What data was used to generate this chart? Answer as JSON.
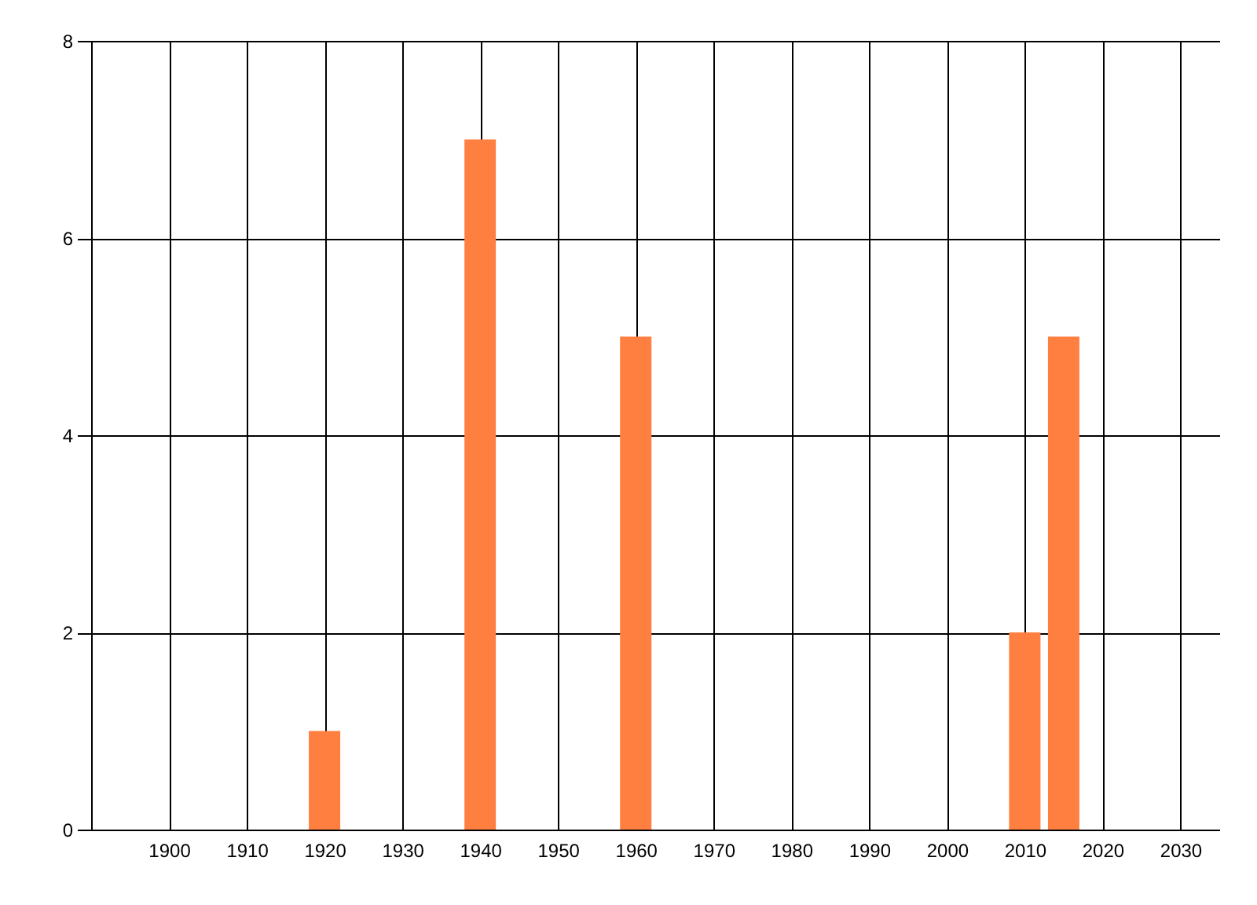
{
  "chart_data": {
    "type": "bar",
    "x": [
      1920,
      1940,
      1960,
      2010,
      2015
    ],
    "values": [
      1,
      7,
      5,
      2,
      5
    ],
    "color": "#ff7f40",
    "xlim": [
      1890,
      2035
    ],
    "xticks": [
      1900,
      1910,
      1920,
      1930,
      1940,
      1950,
      1960,
      1970,
      1980,
      1990,
      2000,
      2010,
      2020,
      2030
    ],
    "ylim": [
      0,
      8
    ],
    "yticks": [
      0,
      2,
      4,
      6,
      8
    ],
    "grid": true
  }
}
